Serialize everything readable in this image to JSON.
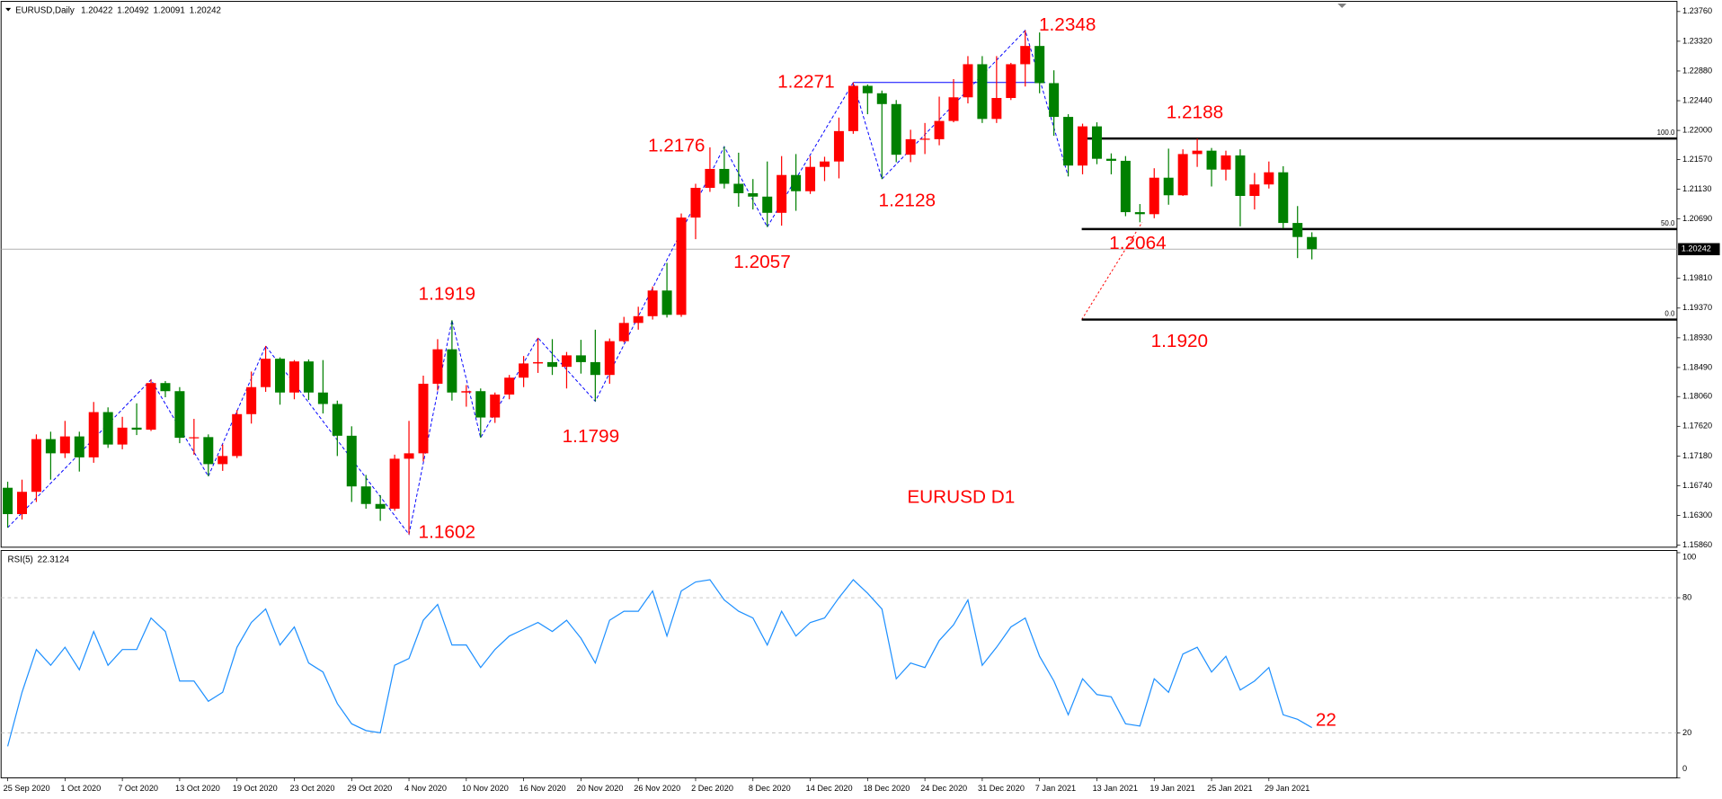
{
  "chart_data": [
    {
      "type": "candlestick",
      "symbol": "EURUSD,Daily",
      "categories": [
        "25 Sep 2020",
        null,
        null,
        null,
        "1 Oct 2020",
        null,
        null,
        null,
        "7 Oct 2020",
        null,
        null,
        null,
        "13 Oct 2020",
        null,
        null,
        null,
        "19 Oct 2020",
        null,
        null,
        null,
        "23 Oct 2020",
        null,
        null,
        null,
        "29 Oct 2020",
        null,
        null,
        null,
        "4 Nov 2020",
        null,
        null,
        null,
        "10 Nov 2020",
        null,
        null,
        null,
        "16 Nov 2020",
        null,
        null,
        null,
        "20 Nov 2020",
        null,
        null,
        null,
        "26 Nov 2020",
        null,
        null,
        null,
        "2 Dec 2020",
        null,
        null,
        null,
        "8 Dec 2020",
        null,
        null,
        null,
        "14 Dec 2020",
        null,
        null,
        null,
        "18 Dec 2020",
        null,
        null,
        null,
        "24 Dec 2020",
        null,
        null,
        null,
        "31 Dec 2020",
        null,
        null,
        null,
        "7 Jan 2021",
        null,
        null,
        null,
        "13 Jan 2021",
        null,
        null,
        null,
        "19 Jan 2021",
        null,
        null,
        null,
        "25 Jan 2021",
        null,
        null,
        null,
        "29 Jan 2021",
        null,
        null,
        null
      ],
      "open": [
        1.1671,
        1.1632,
        1.1665,
        1.1743,
        1.1722,
        1.1747,
        1.1716,
        1.1783,
        1.1735,
        1.176,
        1.1757,
        1.1826,
        1.1814,
        1.1745,
        1.1746,
        1.1706,
        1.1718,
        1.178,
        1.182,
        1.1862,
        1.1812,
        1.1858,
        1.1812,
        1.1795,
        1.1748,
        1.1673,
        1.1647,
        1.164,
        1.1714,
        1.1722,
        1.1825,
        1.1876,
        1.1812,
        1.1814,
        1.1775,
        1.1809,
        1.1834,
        1.1855,
        1.1857,
        1.185,
        1.1867,
        1.1857,
        1.1838,
        1.1888,
        1.1915,
        1.1925,
        1.1963,
        1.1927,
        1.2071,
        1.2115,
        1.2143,
        1.2121,
        1.2107,
        1.2102,
        1.2078,
        1.2134,
        1.211,
        1.2146,
        1.2154,
        1.2199,
        1.2266,
        1.2255,
        1.2239,
        1.2164,
        1.2187,
        1.2187,
        1.2214,
        1.2249,
        1.2298,
        1.2217,
        1.2248,
        1.2298,
        1.2325,
        1.227,
        1.222,
        1.2148,
        1.2206,
        1.2158,
        1.2155,
        1.2079,
        1.2076,
        1.213,
        1.2104,
        1.2165,
        1.217,
        1.2142,
        1.2163,
        1.2103,
        1.212,
        1.2138,
        1.2063,
        1.20422
      ],
      "high": [
        1.168,
        1.1683,
        1.175,
        1.1754,
        1.177,
        1.1754,
        1.1798,
        1.179,
        1.1776,
        1.1796,
        1.1831,
        1.1829,
        1.182,
        1.1773,
        1.175,
        1.1735,
        1.1786,
        1.1843,
        1.1881,
        1.1864,
        1.186,
        1.1861,
        1.186,
        1.18,
        1.1762,
        1.169,
        1.166,
        1.172,
        1.177,
        1.1837,
        1.1891,
        1.1919,
        1.1823,
        1.1818,
        1.1812,
        1.1838,
        1.1866,
        1.1893,
        1.1891,
        1.1872,
        1.189,
        1.1905,
        1.1892,
        1.1924,
        1.1939,
        1.1969,
        1.2004,
        1.2077,
        1.2121,
        1.2175,
        1.2176,
        1.2167,
        1.2128,
        1.2154,
        1.2162,
        1.2165,
        1.2162,
        1.2161,
        1.2219,
        1.2271,
        1.2268,
        1.2259,
        1.2245,
        1.2201,
        1.2211,
        1.225,
        1.2276,
        1.231,
        1.231,
        1.231,
        1.23,
        1.2348,
        1.2345,
        1.2289,
        1.2224,
        1.221,
        1.2212,
        1.2166,
        1.2162,
        1.2091,
        1.2144,
        1.2173,
        1.2172,
        1.2188,
        1.2174,
        1.217,
        1.2172,
        1.2137,
        1.2154,
        1.2147,
        1.2088,
        1.20492
      ],
      "low": [
        1.1612,
        1.1624,
        1.165,
        1.1683,
        1.1715,
        1.1695,
        1.1708,
        1.173,
        1.1728,
        1.1749,
        1.1755,
        1.1805,
        1.1737,
        1.172,
        1.1688,
        1.1696,
        1.1715,
        1.1766,
        1.1813,
        1.1794,
        1.1802,
        1.1801,
        1.1781,
        1.1718,
        1.165,
        1.164,
        1.1622,
        1.1637,
        1.1602,
        1.171,
        1.1815,
        1.18,
        1.1791,
        1.1745,
        1.1767,
        1.1802,
        1.182,
        1.1841,
        1.1838,
        1.1818,
        1.184,
        1.1799,
        1.1825,
        1.1886,
        1.1905,
        1.192,
        1.1923,
        1.1924,
        1.2039,
        1.2109,
        1.2114,
        1.2087,
        1.2083,
        1.2057,
        1.2059,
        1.2081,
        1.2106,
        1.2125,
        1.2129,
        1.2195,
        1.2224,
        1.2128,
        1.2153,
        1.2153,
        1.2165,
        1.2178,
        1.2212,
        1.224,
        1.2211,
        1.2211,
        1.2245,
        1.2265,
        1.2255,
        1.2192,
        1.2132,
        1.2135,
        1.215,
        1.2135,
        1.2073,
        1.2064,
        1.207,
        1.209,
        1.2103,
        1.2146,
        1.2117,
        1.2126,
        1.2058,
        1.2083,
        1.2114,
        1.2055,
        1.2011,
        1.20091
      ],
      "close": [
        1.1632,
        1.1665,
        1.1743,
        1.1722,
        1.1747,
        1.1716,
        1.1783,
        1.1735,
        1.176,
        1.1757,
        1.1826,
        1.1814,
        1.1745,
        1.1746,
        1.1706,
        1.1718,
        1.178,
        1.182,
        1.1862,
        1.1812,
        1.1858,
        1.1812,
        1.1795,
        1.1748,
        1.1673,
        1.1647,
        1.164,
        1.1714,
        1.1722,
        1.1825,
        1.1876,
        1.1812,
        1.1814,
        1.1775,
        1.1809,
        1.1834,
        1.1855,
        1.1857,
        1.185,
        1.1867,
        1.1857,
        1.1838,
        1.1888,
        1.1915,
        1.1925,
        1.1963,
        1.1927,
        1.2071,
        1.2115,
        1.2143,
        1.2121,
        1.2107,
        1.2102,
        1.2078,
        1.2134,
        1.211,
        1.2146,
        1.2154,
        1.2199,
        1.2266,
        1.2255,
        1.2239,
        1.2164,
        1.2187,
        1.2187,
        1.2214,
        1.2249,
        1.2298,
        1.2217,
        1.2248,
        1.2298,
        1.2325,
        1.227,
        1.222,
        1.2148,
        1.2206,
        1.2158,
        1.2155,
        1.2079,
        1.2076,
        1.213,
        1.2104,
        1.2165,
        1.217,
        1.2142,
        1.2163,
        1.2103,
        1.212,
        1.2138,
        1.2063,
        1.20422,
        1.20242
      ],
      "bull_color": "#ff0000",
      "bear_color": "#008000",
      "ylim": [
        1.1583,
        1.2391
      ],
      "yticks": [
        {
          "value": 1.2376,
          "label": "1.23760"
        },
        {
          "value": 1.2332,
          "label": "1.23320"
        },
        {
          "value": 1.2288,
          "label": "1.22880"
        },
        {
          "value": 1.2244,
          "label": "1.22440"
        },
        {
          "value": 1.22,
          "label": "1.22000"
        },
        {
          "value": 1.2157,
          "label": "1.21570"
        },
        {
          "value": 1.2113,
          "label": "1.21130"
        },
        {
          "value": 1.2069,
          "label": "1.20690"
        },
        {
          "value": 1.1981,
          "label": "1.19810"
        },
        {
          "value": 1.1937,
          "label": "1.19370"
        },
        {
          "value": 1.1893,
          "label": "1.18930"
        },
        {
          "value": 1.1849,
          "label": "1.18490"
        },
        {
          "value": 1.1806,
          "label": "1.18060"
        },
        {
          "value": 1.1762,
          "label": "1.17620"
        },
        {
          "value": 1.1718,
          "label": "1.17180"
        },
        {
          "value": 1.1674,
          "label": "1.16740"
        },
        {
          "value": 1.163,
          "label": "1.16300"
        },
        {
          "value": 1.1586,
          "label": "1.15860"
        }
      ],
      "annotations": [
        1.2348,
        1.2271,
        1.2176,
        1.2128,
        1.2057,
        1.1919,
        1.1799,
        1.1602,
        1.2188,
        1.2064,
        {
          "value": 1.192,
          "label": "1.1920"
        }
      ],
      "annotation_color": "#ff0000",
      "watermark": "EURUSD D1",
      "zigzag_bars": [
        0,
        10,
        14,
        18,
        28,
        31,
        33,
        37,
        41,
        50,
        53,
        59,
        61,
        71,
        74
      ],
      "zigzag_color": "#0000ff",
      "fibonacci_levels": [
        {
          "value": 100,
          "label": "100.0"
        },
        {
          "value": 50,
          "label": "50.0"
        },
        {
          "value": 0,
          "label": "0.0"
        }
      ]
    },
    {
      "type": "line",
      "title": "RSI(5)",
      "values": [
        14,
        38,
        57,
        50,
        58,
        48,
        65,
        50,
        57,
        57,
        71,
        65,
        43,
        43,
        34,
        38,
        58,
        69,
        75,
        59,
        67,
        51,
        47,
        33,
        24,
        21,
        20,
        50,
        53,
        70,
        77,
        59,
        59,
        49,
        57,
        63,
        66,
        69,
        65,
        70,
        62,
        51,
        70,
        74,
        74,
        83,
        63,
        83,
        87,
        88,
        79,
        74,
        71,
        59,
        74,
        63,
        69,
        71,
        80,
        88,
        82,
        75,
        44,
        51,
        49,
        61,
        68,
        79,
        50,
        58,
        67,
        71,
        54,
        43,
        28,
        44,
        37,
        36,
        24,
        23,
        44,
        38,
        55,
        58,
        47,
        54,
        39,
        43,
        49,
        28,
        26,
        22.3124
      ],
      "color": "#1e90ff",
      "ylim": [
        0,
        100
      ],
      "yticks": [
        100,
        80,
        20,
        0
      ],
      "annotations": [
        22
      ]
    }
  ]
}
